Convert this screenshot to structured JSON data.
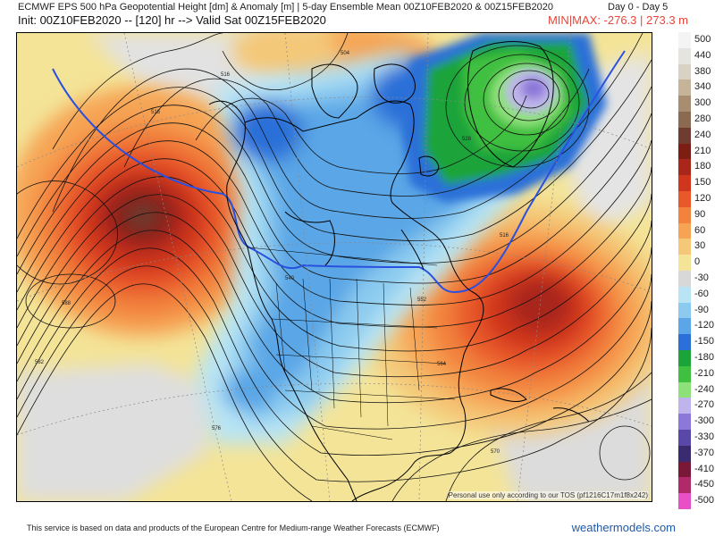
{
  "header": {
    "title": "ECMWF EPS 500 hPa Geopotential Height [dm] & Anomaly [m] | 5-day Ensemble Mean 00Z10FEB2020 & 00Z15FEB2020",
    "days": "Day 0 - Day 5",
    "init": "Init: 00Z10FEB2020 -- [120] hr --> Valid Sat 00Z15FEB2020",
    "minmax": "MIN|MAX: -276.3 | 273.3 m"
  },
  "map": {
    "personal_note": "Personal use only according to our TOS (pf1216C17m1f8x242)",
    "contour_labels": [
      "504",
      "516",
      "516",
      "516",
      "528",
      "540",
      "552",
      "564",
      "576",
      "588",
      "582",
      "570"
    ]
  },
  "legend": {
    "entries": [
      {
        "label": "500",
        "color": "#f4f4f4"
      },
      {
        "label": "440",
        "color": "#e6e4de"
      },
      {
        "label": "380",
        "color": "#d8d2c4"
      },
      {
        "label": "340",
        "color": "#c6b49a"
      },
      {
        "label": "300",
        "color": "#a88e70"
      },
      {
        "label": "280",
        "color": "#8a6a50"
      },
      {
        "label": "240",
        "color": "#6e3c30"
      },
      {
        "label": "210",
        "color": "#7c1e14"
      },
      {
        "label": "180",
        "color": "#a8261a"
      },
      {
        "label": "150",
        "color": "#d0361e"
      },
      {
        "label": "120",
        "color": "#e8582a"
      },
      {
        "label": "90",
        "color": "#f2823c"
      },
      {
        "label": "60",
        "color": "#f6a454"
      },
      {
        "label": "30",
        "color": "#f4c878"
      },
      {
        "label": "0",
        "color": "#f4e498"
      },
      {
        "label": "-30",
        "color": "#d8d8d8"
      },
      {
        "label": "-60",
        "color": "#b8e4f4"
      },
      {
        "label": "-90",
        "color": "#8ccbef"
      },
      {
        "label": "-120",
        "color": "#5aa6e6"
      },
      {
        "label": "-150",
        "color": "#2a70d8"
      },
      {
        "label": "-180",
        "color": "#1aa43a"
      },
      {
        "label": "-210",
        "color": "#40c040"
      },
      {
        "label": "-240",
        "color": "#8ee07a"
      },
      {
        "label": "-270",
        "color": "#c0b4ec"
      },
      {
        "label": "-300",
        "color": "#8c78d8"
      },
      {
        "label": "-330",
        "color": "#5a48a8"
      },
      {
        "label": "-370",
        "color": "#3a2a70"
      },
      {
        "label": "-410",
        "color": "#7a1838"
      },
      {
        "label": "-450",
        "color": "#b02a6a"
      },
      {
        "label": "-500",
        "color": "#e850c8"
      }
    ]
  },
  "footer": {
    "note": "This service is based on data and products of the European Centre for Medium-range Weather Forecasts (ECMWF)",
    "site": "weathermodels.com"
  }
}
